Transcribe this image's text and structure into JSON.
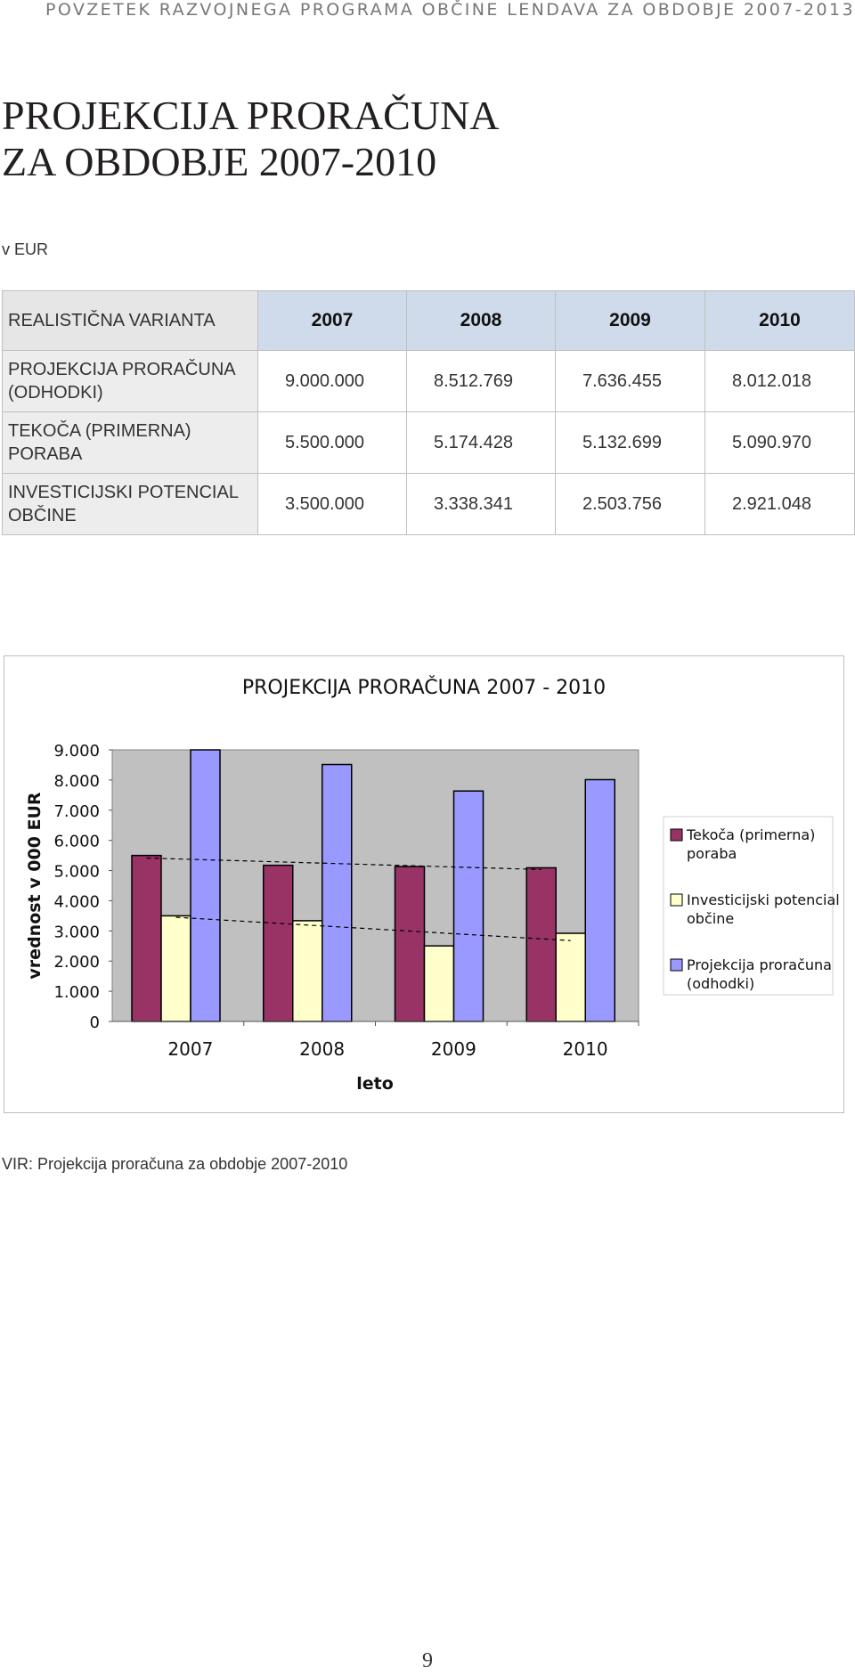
{
  "header": {
    "running_title": "POVZETEK RAZVOJNEGA PROGRAMA OBČINE LENDAVA ZA OBDOBJE 2007-2013"
  },
  "title": {
    "line1": "PROJEKCIJA PRORAČUNA",
    "line2": "ZA OBDOBJE 2007-2010"
  },
  "unit": "v EUR",
  "table": {
    "header_label": "REALISTIČNA VARIANTA",
    "years": [
      "2007",
      "2008",
      "2009",
      "2010"
    ],
    "rows": [
      {
        "label": "PROJEKCIJA PRORAČUNA (ODHODKI)",
        "values": [
          "9.000.000",
          "8.512.769",
          "7.636.455",
          "8.012.018"
        ]
      },
      {
        "label": "TEKOČA (PRIMERNA) PORABA",
        "values": [
          "5.500.000",
          "5.174.428",
          "5.132.699",
          "5.090.970"
        ]
      },
      {
        "label": "INVESTICIJSKI POTENCIAL OBČINE",
        "values": [
          "3.500.000",
          "3.338.341",
          "2.503.756",
          "2.921.048"
        ]
      }
    ]
  },
  "chart_data": {
    "type": "bar",
    "title": "PROJEKCIJA PRORAČUNA 2007 - 2010",
    "xlabel": "leto",
    "ylabel": "vrednost v 000 EUR",
    "categories": [
      "2007",
      "2008",
      "2009",
      "2010"
    ],
    "ylim": [
      0,
      9000
    ],
    "yticks": [
      "0",
      "1.000",
      "2.000",
      "3.000",
      "4.000",
      "5.000",
      "6.000",
      "7.000",
      "8.000",
      "9.000"
    ],
    "grid": false,
    "legend_position": "right",
    "trendlines": true,
    "series": [
      {
        "name": "Tekoča (primerna) poraba",
        "values": [
          5500,
          5174,
          5133,
          5091
        ],
        "color": "#993366"
      },
      {
        "name": "Investicijski potencial občine",
        "values": [
          3500,
          3338,
          2504,
          2921
        ],
        "color": "#ffffcc"
      },
      {
        "name": "Projekcija proračuna (odhodki)",
        "values": [
          9000,
          8513,
          7636,
          8012
        ],
        "color": "#9999ff"
      }
    ],
    "plot_background": "#c0c0c0"
  },
  "caption": "VIR: Projekcija proračuna za obdobje 2007-2010",
  "page_number": "9"
}
